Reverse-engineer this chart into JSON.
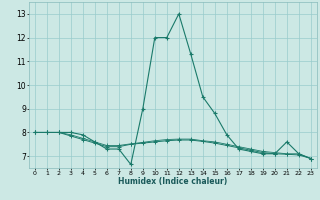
{
  "xlabel": "Humidex (Indice chaleur)",
  "bg_color": "#cce8e4",
  "grid_color": "#99cccc",
  "line_color": "#1a7a6a",
  "xlim": [
    -0.5,
    23.5
  ],
  "ylim": [
    6.5,
    13.5
  ],
  "yticks": [
    7,
    8,
    9,
    10,
    11,
    12,
    13
  ],
  "xticks": [
    0,
    1,
    2,
    3,
    4,
    5,
    6,
    7,
    8,
    9,
    10,
    11,
    12,
    13,
    14,
    15,
    16,
    17,
    18,
    19,
    20,
    21,
    22,
    23
  ],
  "curve1_x": [
    0,
    1,
    2,
    3,
    4,
    5,
    6,
    7,
    8,
    9,
    10,
    11,
    12,
    13,
    14,
    15,
    16,
    17,
    18,
    19,
    20,
    21,
    22,
    23
  ],
  "curve1_y": [
    8.0,
    8.0,
    8.0,
    8.0,
    7.9,
    7.6,
    7.3,
    7.3,
    6.65,
    9.0,
    12.0,
    12.0,
    13.0,
    11.3,
    9.5,
    8.8,
    7.9,
    7.3,
    7.2,
    7.1,
    7.1,
    7.6,
    7.1,
    6.9
  ],
  "curve2_x": [
    0,
    1,
    2,
    3,
    4,
    5,
    6,
    7,
    8,
    9,
    10,
    11,
    12,
    13,
    14,
    15,
    16,
    17,
    18,
    19,
    20,
    21,
    22,
    23
  ],
  "curve2_y": [
    8.0,
    8.0,
    8.0,
    7.85,
    7.7,
    7.55,
    7.4,
    7.4,
    7.5,
    7.55,
    7.6,
    7.65,
    7.68,
    7.68,
    7.62,
    7.55,
    7.45,
    7.35,
    7.25,
    7.15,
    7.1,
    7.08,
    7.05,
    6.9
  ],
  "curve3_x": [
    0,
    1,
    2,
    3,
    4,
    5,
    6,
    7,
    8,
    9,
    10,
    11,
    12,
    13,
    14,
    15,
    16,
    17,
    18,
    19,
    20,
    21,
    22,
    23
  ],
  "curve3_y": [
    8.0,
    8.0,
    8.0,
    7.9,
    7.75,
    7.6,
    7.45,
    7.45,
    7.52,
    7.58,
    7.65,
    7.7,
    7.72,
    7.72,
    7.65,
    7.6,
    7.5,
    7.4,
    7.3,
    7.2,
    7.15,
    7.1,
    7.1,
    6.9
  ]
}
